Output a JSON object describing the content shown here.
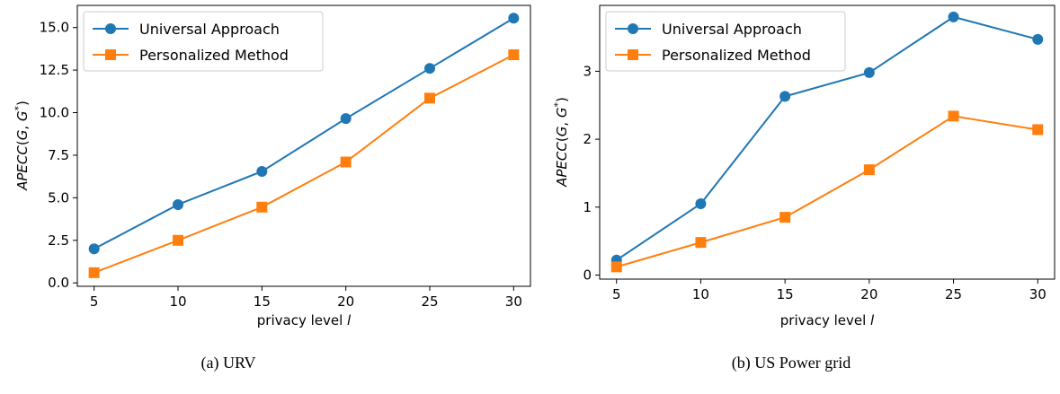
{
  "colors": {
    "universal": "#1f77b4",
    "personalized": "#ff7f0e"
  },
  "chart_data": [
    {
      "type": "line",
      "caption": "(a) URV",
      "xlabel": "privacy level l",
      "ylabel": "APECC(G, G*)",
      "x": [
        5,
        10,
        15,
        20,
        25,
        30
      ],
      "xlim": [
        4.0,
        31.0
      ],
      "ylim": [
        -0.2,
        16.3
      ],
      "xticks": [
        5,
        10,
        15,
        20,
        25,
        30
      ],
      "yticks": [
        0.0,
        2.5,
        5.0,
        7.5,
        10.0,
        12.5,
        15.0
      ],
      "ytick_labels": [
        "0.0",
        "2.5",
        "5.0",
        "7.5",
        "10.0",
        "12.5",
        "15.0"
      ],
      "legend": "upper-left",
      "grid": false,
      "series": [
        {
          "name": "Universal Approach",
          "marker": "circle",
          "values": [
            2.0,
            4.6,
            6.55,
            9.65,
            12.6,
            15.55
          ]
        },
        {
          "name": "Personalized Method",
          "marker": "square",
          "values": [
            0.6,
            2.5,
            4.45,
            7.1,
            10.85,
            13.4
          ]
        }
      ]
    },
    {
      "type": "line",
      "caption": "(b) US Power grid",
      "xlabel": "privacy level l",
      "ylabel": "APECC(G, G*)",
      "x": [
        5,
        10,
        15,
        20,
        25,
        30
      ],
      "xlim": [
        4.0,
        31.0
      ],
      "ylim": [
        -0.06,
        3.97
      ],
      "xticks": [
        5,
        10,
        15,
        20,
        25,
        30
      ],
      "yticks": [
        0,
        1,
        2,
        3
      ],
      "ytick_labels": [
        "0",
        "1",
        "2",
        "3"
      ],
      "legend": "upper-left",
      "grid": false,
      "series": [
        {
          "name": "Universal Approach",
          "marker": "circle",
          "values": [
            0.22,
            1.05,
            2.63,
            2.98,
            3.8,
            3.47
          ]
        },
        {
          "name": "Personalized Method",
          "marker": "square",
          "values": [
            0.12,
            0.48,
            0.85,
            1.55,
            2.34,
            2.14
          ]
        }
      ]
    }
  ]
}
